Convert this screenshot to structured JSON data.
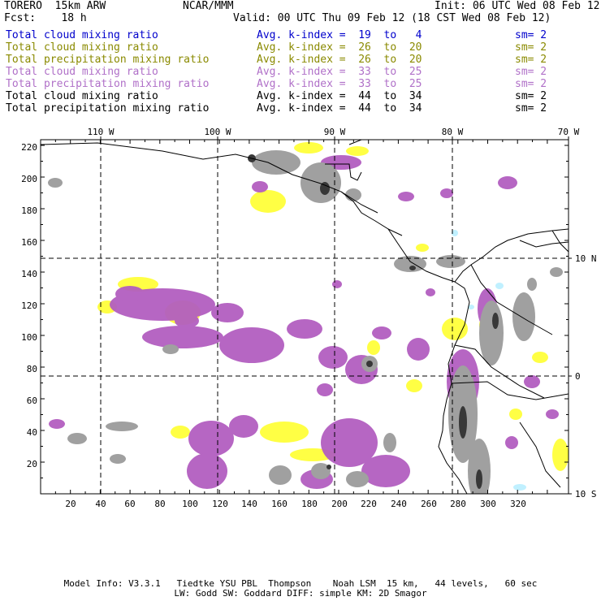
{
  "header": {
    "model": "TORERO  15km ARW",
    "org": "NCAR/MMM",
    "init": "Init: 06 UTC Wed 08 Feb 12",
    "fcst": "Fcst:    18 h",
    "valid": "Valid: 00 UTC Thu 09 Feb 12 (18 CST Wed 08 Feb 12)"
  },
  "legend": [
    {
      "name": "Total cloud mixing ratio",
      "avg": "Avg. k-index =  19  to   4",
      "sm": "sm= 2",
      "color": "#0000cc"
    },
    {
      "name": "Total cloud mixing ratio",
      "avg": "Avg. k-index =  26  to  20",
      "sm": "sm= 2",
      "color": "#8a8a00"
    },
    {
      "name": "Total precipitation mixing ratio",
      "avg": "Avg. k-index =  26  to  20",
      "sm": "sm= 2",
      "color": "#8a8a00"
    },
    {
      "name": "Total cloud mixing ratio",
      "avg": "Avg. k-index =  33  to  25",
      "sm": "sm= 2",
      "color": "#b070c8"
    },
    {
      "name": "Total precipitation mixing ratio",
      "avg": "Avg. k-index =  33  to  25",
      "sm": "sm= 2",
      "color": "#b070c8"
    },
    {
      "name": "Total cloud mixing ratio",
      "avg": "Avg. k-index =  44  to  34",
      "sm": "sm= 2",
      "color": "#000000"
    },
    {
      "name": "Total precipitation mixing ratio",
      "avg": "Avg. k-index =  44  to  34",
      "sm": "sm= 2",
      "color": "#000000"
    }
  ],
  "map": {
    "lon_labels": [
      "110 W",
      "100 W",
      "90 W",
      "80 W",
      "70 W"
    ],
    "lat_labels": [
      "10 N",
      "0",
      "10 S"
    ],
    "y_ticks": [
      "220",
      "200",
      "180",
      "160",
      "140",
      "120",
      "100",
      "80",
      "60",
      "40",
      "20"
    ],
    "x_ticks": [
      "20",
      "40",
      "60",
      "80",
      "100",
      "120",
      "140",
      "160",
      "180",
      "200",
      "220",
      "240",
      "260",
      "280",
      "300",
      "320"
    ],
    "colors": {
      "yellow": "#ffff44",
      "purple": "#b35ec0",
      "grey": "#a0a0a0",
      "dark": "#383838",
      "cyan": "#c0f0ff"
    }
  },
  "footer": {
    "line1": "Model Info: V3.3.1   Tiedtke YSU PBL  Thompson    Noah LSM  15 km,   44 levels,   60 sec",
    "line2": "LW: Godd SW: Goddard DIFF: simple KM: 2D Smagor"
  }
}
